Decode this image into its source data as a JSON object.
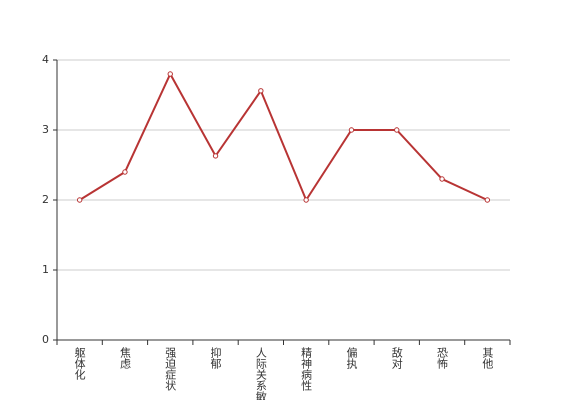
{
  "chart_data": {
    "type": "line",
    "categories": [
      "躯体化",
      "焦虑",
      "强迫症状",
      "抑郁",
      "人际关系敏感",
      "精神病性",
      "偏执",
      "敌对",
      "恐怖",
      "其他"
    ],
    "values": [
      2,
      2.4,
      3.8,
      2.63,
      3.56,
      2,
      3,
      3,
      2.3,
      2
    ],
    "color": "#b83434",
    "ylim": [
      0,
      4
    ],
    "yticks": [
      0,
      1,
      2,
      3,
      4
    ],
    "grid": true
  }
}
